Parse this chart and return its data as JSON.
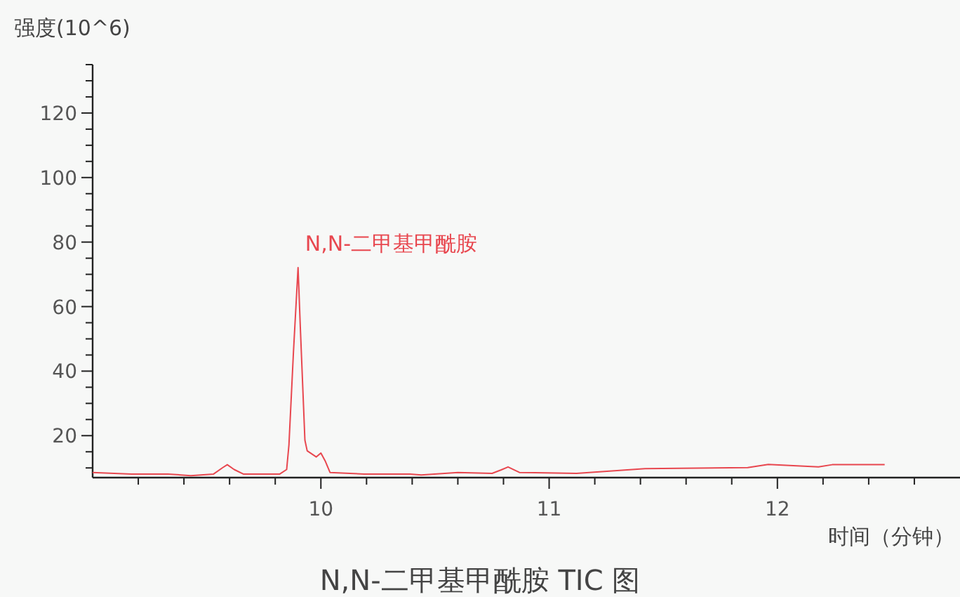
{
  "chart_data": {
    "type": "line",
    "title": "N,N-二甲基甲酰胺 TIC 图",
    "xlabel": "时间（分钟）",
    "ylabel": "强度(10^6)",
    "x": [
      9.0,
      9.17,
      9.33,
      9.43,
      9.53,
      9.57,
      9.59,
      9.62,
      9.66,
      9.82,
      9.85,
      9.86,
      9.88,
      9.9,
      9.91,
      9.93,
      9.94,
      9.98,
      10.0,
      10.02,
      10.04,
      10.19,
      10.39,
      10.44,
      10.6,
      10.75,
      10.79,
      10.82,
      10.87,
      11.12,
      11.42,
      11.87,
      11.96,
      12.18,
      12.24,
      12.47
    ],
    "series": [
      {
        "color": "#e8474f",
        "values": [
          8.6,
          8.1,
          8.1,
          7.6,
          8.1,
          10.1,
          11.0,
          9.5,
          8.1,
          8.1,
          9.5,
          17.1,
          46.2,
          72.1,
          53.5,
          18.6,
          15.3,
          13.4,
          14.6,
          12.0,
          8.6,
          8.1,
          8.1,
          7.8,
          8.6,
          8.3,
          9.4,
          10.3,
          8.6,
          8.3,
          9.8,
          10.1,
          11.1,
          10.3,
          11.0,
          11.0
        ]
      }
    ],
    "annotations": [
      {
        "text": "N,N-二甲基甲酰胺",
        "x": 9.9,
        "y": 72.1
      }
    ],
    "xlim": [
      9.0,
      12.8
    ],
    "xticks": [
      {
        "value": 9.2,
        "label": null
      },
      {
        "value": 9.4,
        "label": null
      },
      {
        "value": 9.6,
        "label": null
      },
      {
        "value": 9.8,
        "label": null
      },
      10,
      {
        "value": 10.2,
        "label": null
      },
      {
        "value": 10.4,
        "label": null
      },
      {
        "value": 10.6,
        "label": null
      },
      {
        "value": 10.8,
        "label": null
      },
      11,
      {
        "value": 11.2,
        "label": null
      },
      {
        "value": 11.4,
        "label": null
      },
      {
        "value": 11.6,
        "label": null
      },
      {
        "value": 11.8,
        "label": null
      },
      12,
      {
        "value": 12.2,
        "label": null
      },
      {
        "value": 12.4,
        "label": null
      },
      {
        "value": 12.6,
        "label": null
      }
    ],
    "ylim": [
      7,
      135
    ],
    "yticks": [
      {
        "value": 10,
        "label": null
      },
      {
        "value": 15,
        "label": null
      },
      20,
      {
        "value": 25,
        "label": null
      },
      {
        "value": 30,
        "label": null
      },
      {
        "value": 35,
        "label": null
      },
      40,
      {
        "value": 45,
        "label": null
      },
      {
        "value": 50,
        "label": null
      },
      {
        "value": 55,
        "label": null
      },
      60,
      {
        "value": 65,
        "label": null
      },
      {
        "value": 70,
        "label": null
      },
      {
        "value": 75,
        "label": null
      },
      80,
      {
        "value": 85,
        "label": null
      },
      {
        "value": 90,
        "label": null
      },
      {
        "value": 95,
        "label": null
      },
      100,
      {
        "value": 105,
        "label": null
      },
      {
        "value": 110,
        "label": null
      },
      {
        "value": 115,
        "label": null
      },
      120,
      {
        "value": 125,
        "label": null
      },
      {
        "value": 130,
        "label": null
      },
      {
        "value": 135,
        "label": null
      }
    ],
    "grid": false
  }
}
